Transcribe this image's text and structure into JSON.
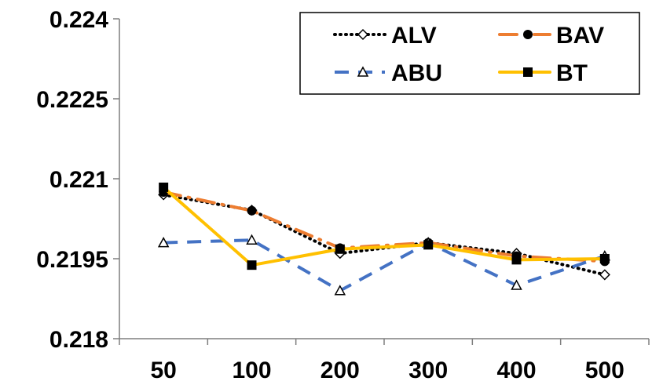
{
  "chart_data": {
    "type": "line",
    "title": "",
    "xlabel": "",
    "ylabel": "",
    "categories": [
      "50",
      "100",
      "200",
      "300",
      "400",
      "500"
    ],
    "y_ticks": [
      {
        "value": 0.218,
        "label": "0.218"
      },
      {
        "value": 0.2195,
        "label": "0.2195"
      },
      {
        "value": 0.221,
        "label": "0.221"
      },
      {
        "value": 0.2225,
        "label": "0.2225"
      },
      {
        "value": 0.224,
        "label": "0.224"
      }
    ],
    "ylim": [
      0.218,
      0.224
    ],
    "grid": false,
    "legend_position": "top-right",
    "series": [
      {
        "name": "ALV",
        "color": "#000000",
        "style": "dotted",
        "marker": "diamond-open",
        "values": [
          0.2207,
          0.22041,
          0.2196,
          0.2198,
          0.2196,
          0.2192
        ]
      },
      {
        "name": "BAV",
        "color": "#ED7D31",
        "style": "dashdot",
        "marker": "circle",
        "values": [
          0.22075,
          0.2204,
          0.2197,
          0.2198,
          0.21955,
          0.21945
        ]
      },
      {
        "name": "ABU",
        "color": "#4472C4",
        "style": "dashed",
        "marker": "triangle-open",
        "values": [
          0.2198,
          0.21985,
          0.2189,
          0.2198,
          0.219,
          0.21955
        ]
      },
      {
        "name": "BT",
        "color": "#FFC000",
        "style": "solid",
        "marker": "square",
        "values": [
          0.22084,
          0.21938,
          0.21968,
          0.21976,
          0.21948,
          0.2195
        ]
      }
    ]
  }
}
